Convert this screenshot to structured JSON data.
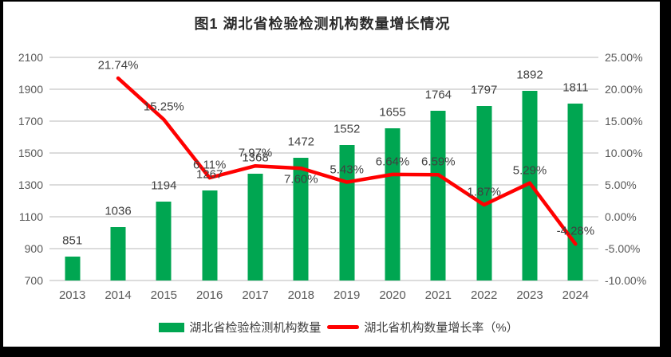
{
  "chart_data": {
    "type": "combo-bar-line",
    "title": "图1 湖北省检验检测机构数量增长情况",
    "categories": [
      "2013",
      "2014",
      "2015",
      "2016",
      "2017",
      "2018",
      "2019",
      "2020",
      "2021",
      "2022",
      "2023",
      "2024"
    ],
    "series": [
      {
        "name": "湖北省检验检测机构数量",
        "type": "bar",
        "axis": "left",
        "color": "#00A651",
        "values": [
          851,
          1036,
          1194,
          1267,
          1368,
          1472,
          1552,
          1655,
          1764,
          1797,
          1892,
          1811
        ],
        "labels": [
          "851",
          "1036",
          "1194",
          "1267",
          "1368",
          "1472",
          "1552",
          "1655",
          "1764",
          "1797",
          "1892",
          "1811"
        ]
      },
      {
        "name": "湖北省机构数量增长率（%）",
        "type": "line",
        "axis": "right",
        "color": "#FF0000",
        "values": [
          null,
          21.74,
          15.25,
          6.11,
          7.97,
          7.6,
          5.43,
          6.64,
          6.59,
          1.87,
          5.29,
          -4.28
        ],
        "labels": [
          null,
          "21.74%",
          "15.25%",
          "6.11%",
          "7.97%",
          "7.60%",
          "5.43%",
          "6.64%",
          "6.59%",
          "1.87%",
          "5.29%",
          "-4.28%"
        ],
        "label_side": [
          null,
          "above",
          "above",
          "above",
          "above",
          "below",
          "above",
          "above",
          "above",
          "above",
          "above",
          "above"
        ]
      }
    ],
    "left_axis": {
      "min": 700,
      "max": 2100,
      "ticks": [
        "700",
        "900",
        "1100",
        "1300",
        "1500",
        "1700",
        "1900",
        "2100"
      ]
    },
    "right_axis": {
      "min": -10,
      "max": 25,
      "ticks": [
        "-10.00%",
        "-5.00%",
        "0.00%",
        "5.00%",
        "10.00%",
        "15.00%",
        "20.00%",
        "25.00%"
      ]
    },
    "grid": true,
    "legend_position": "bottom",
    "colors": {
      "grid": "#dcdcdc",
      "axis_text": "#595959",
      "data_label": "#404040",
      "title": "#2b2b2b",
      "plot_bg": "#ffffff",
      "frame": "#000000"
    }
  }
}
